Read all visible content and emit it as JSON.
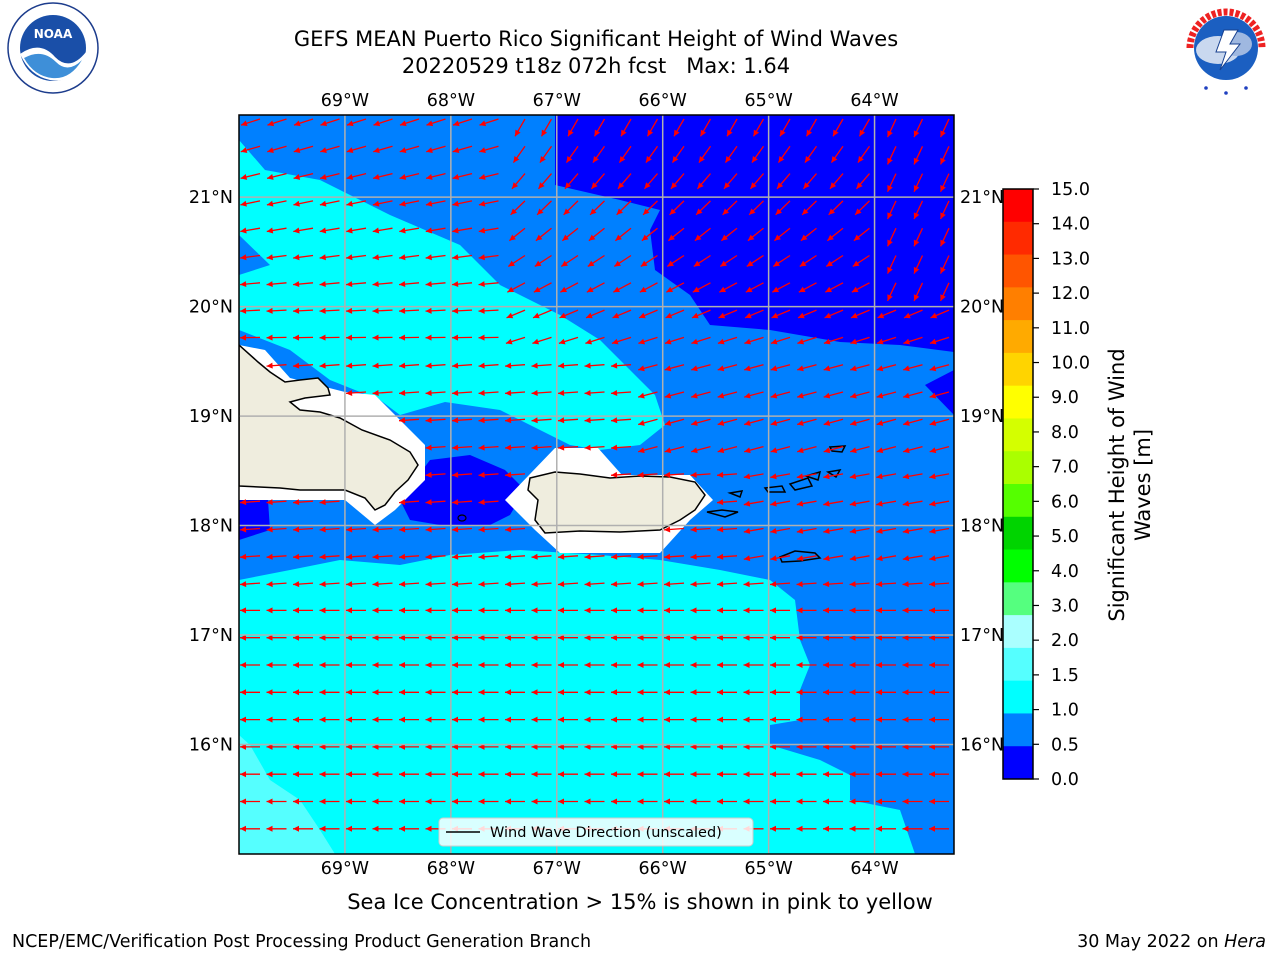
{
  "header": {
    "title_line1": "GEFS MEAN Puerto Rico Significant Height of Wind Waves",
    "title_line2": "20220529 t18z 072h fcst   Max: 1.64"
  },
  "logos": {
    "noaa_text": "NOAA",
    "noaa_ring": "NATIONAL OCEANIC AND ATMOSPHERIC ADMINISTRATION · U.S. DEPARTMENT OF COMMERCE",
    "nws_ring": "NATIONAL WEATHER SERVICE"
  },
  "map": {
    "lon_labels": [
      "69°W",
      "68°W",
      "67°W",
      "66°W",
      "65°W",
      "64°W"
    ],
    "lat_labels": [
      "21°N",
      "20°N",
      "19°N",
      "18°N",
      "17°N",
      "16°N"
    ],
    "legend_label": "Wind Wave Direction (unscaled)",
    "arrow_color": "#ff0000",
    "land_color": "#efedde",
    "grid_color": "#b0b0b0"
  },
  "colorbar": {
    "label_line1": "Significant Height of Wind",
    "label_line2": "Waves [m]",
    "ticks": [
      "15.0",
      "14.0",
      "13.0",
      "12.0",
      "11.0",
      "10.0",
      "9.0",
      "8.0",
      "7.0",
      "6.0",
      "5.0",
      "4.0",
      "3.0",
      "2.0",
      "1.5",
      "1.0",
      "0.5",
      "0.0"
    ],
    "colors_top_to_bottom": [
      "#ff0000",
      "#ff2a00",
      "#ff5500",
      "#ff7f00",
      "#ffaa00",
      "#ffd400",
      "#ffff00",
      "#d4ff00",
      "#aaff00",
      "#55ff00",
      "#00d400",
      "#00ff00",
      "#55ff7f",
      "#aaffff",
      "#55ffff",
      "#00ffff",
      "#0080ff",
      "#0000ff"
    ]
  },
  "chart_data": {
    "type": "heatmap",
    "title": "GEFS MEAN Puerto Rico Significant Height of Wind Waves",
    "subtitle": "20220529 t18z 072h fcst   Max: 1.64",
    "variable": "Significant Height of Wind Waves [m]",
    "lon_range": [
      -70,
      -63.25
    ],
    "lat_range": [
      15.0,
      21.75
    ],
    "max_value": 1.64,
    "colorbar_levels": [
      0.0,
      0.5,
      1.0,
      1.5,
      2.0,
      3.0,
      4.0,
      5.0,
      6.0,
      7.0,
      8.0,
      9.0,
      10.0,
      11.0,
      12.0,
      13.0,
      14.0,
      15.0
    ],
    "grid": true
  },
  "footer": {
    "note": "Sea Ice Concentration > 15% is shown in pink to yellow",
    "left": "NCEP/EMC/Verification Post Processing Product Generation Branch",
    "right_prefix": "30 May 2022 on ",
    "right_host": "Hera"
  }
}
